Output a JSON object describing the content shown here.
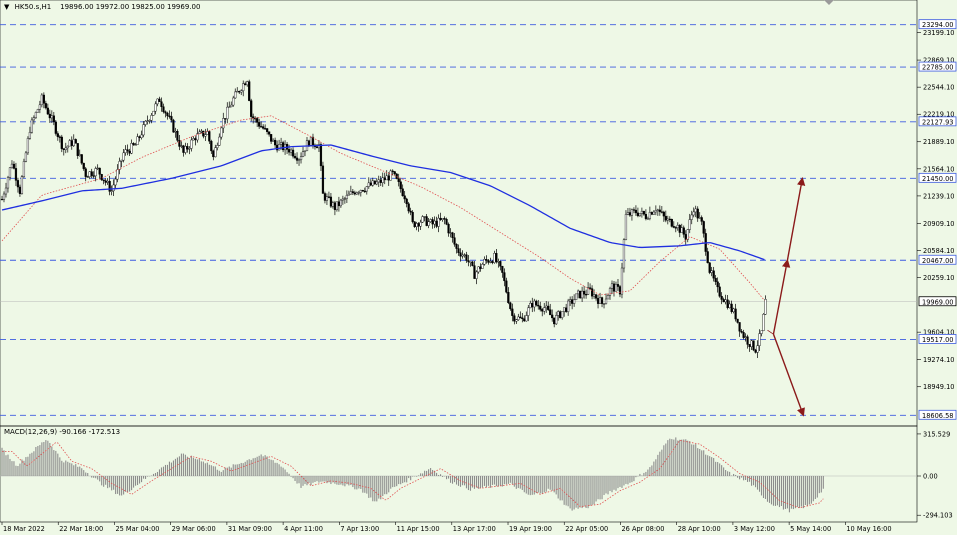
{
  "header": {
    "symbol_info": "HK50.s,H1",
    "ohlc": "19896.00 19972.00 19825.00 19969.00",
    "macd_info": "MACD(12,26,9) -90.166 -172.513"
  },
  "colors": {
    "background": "#eef8e6",
    "grid_level": "#3d5be0",
    "ma_slow": "#1f2fe0",
    "ma_fast": "#e05050",
    "candle": "#000000",
    "arrows": "#8b1a1a",
    "macd_bars": "#8c8c8c",
    "macd_signal": "#e05050"
  },
  "chart_data": {
    "type": "candlestick",
    "price_ticks": [
      "23199.10",
      "22869.10",
      "22544.10",
      "22219.10",
      "21889.10",
      "21564.10",
      "21239.10",
      "20909.10",
      "20584.10",
      "20259.10",
      "19604.10",
      "19274.10",
      "18949.10"
    ],
    "level_lines": [
      "23294.00",
      "22785.00",
      "22127.93",
      "21450.00",
      "20467.00",
      "19517.00",
      "18606.58"
    ],
    "current_price": "19969.00",
    "x_ticks": [
      "18 Mar 2022",
      "22 Mar 18:00",
      "25 Mar 04:00",
      "29 Mar 06:00",
      "31 Mar 09:00",
      "4 Apr 11:00",
      "7 Apr 13:00",
      "11 Apr 15:00",
      "13 Apr 17:00",
      "19 Apr 19:00",
      "22 Apr 05:00",
      "26 Apr 08:00",
      "28 Apr 10:00",
      "3 May 12:00",
      "5 May 14:00",
      "10 May 16:00"
    ],
    "macd_ticks": [
      "315.529",
      "0.00",
      "-294.103"
    ],
    "anchors": [
      {
        "t": 0,
        "p": 21200
      },
      {
        "t": 10,
        "p": 21650
      },
      {
        "t": 18,
        "p": 21300
      },
      {
        "t": 28,
        "p": 22050
      },
      {
        "t": 40,
        "p": 22400
      },
      {
        "t": 52,
        "p": 22100
      },
      {
        "t": 62,
        "p": 21800
      },
      {
        "t": 72,
        "p": 21900
      },
      {
        "t": 84,
        "p": 21500
      },
      {
        "t": 96,
        "p": 21550
      },
      {
        "t": 110,
        "p": 21300
      },
      {
        "t": 122,
        "p": 21750
      },
      {
        "t": 134,
        "p": 21850
      },
      {
        "t": 146,
        "p": 22150
      },
      {
        "t": 158,
        "p": 22400
      },
      {
        "t": 172,
        "p": 22050
      },
      {
        "t": 182,
        "p": 21750
      },
      {
        "t": 194,
        "p": 21950
      },
      {
        "t": 206,
        "p": 22000
      },
      {
        "t": 212,
        "p": 21700
      },
      {
        "t": 220,
        "p": 22100
      },
      {
        "t": 232,
        "p": 22400
      },
      {
        "t": 240,
        "p": 22550
      },
      {
        "t": 246,
        "p": 22650
      },
      {
        "t": 250,
        "p": 22200
      },
      {
        "t": 262,
        "p": 22050
      },
      {
        "t": 274,
        "p": 21850
      },
      {
        "t": 288,
        "p": 21800
      },
      {
        "t": 298,
        "p": 21700
      },
      {
        "t": 308,
        "p": 21900
      },
      {
        "t": 318,
        "p": 21850
      },
      {
        "t": 322,
        "p": 21250
      },
      {
        "t": 334,
        "p": 21100
      },
      {
        "t": 344,
        "p": 21200
      },
      {
        "t": 354,
        "p": 21300
      },
      {
        "t": 366,
        "p": 21350
      },
      {
        "t": 378,
        "p": 21400
      },
      {
        "t": 392,
        "p": 21500
      },
      {
        "t": 406,
        "p": 21200
      },
      {
        "t": 412,
        "p": 20900
      },
      {
        "t": 422,
        "p": 20950
      },
      {
        "t": 432,
        "p": 20900
      },
      {
        "t": 444,
        "p": 20950
      },
      {
        "t": 456,
        "p": 20600
      },
      {
        "t": 466,
        "p": 20500
      },
      {
        "t": 474,
        "p": 20300
      },
      {
        "t": 484,
        "p": 20450
      },
      {
        "t": 494,
        "p": 20500
      },
      {
        "t": 502,
        "p": 20300
      },
      {
        "t": 512,
        "p": 19800
      },
      {
        "t": 522,
        "p": 19750
      },
      {
        "t": 532,
        "p": 19950
      },
      {
        "t": 544,
        "p": 19900
      },
      {
        "t": 554,
        "p": 19750
      },
      {
        "t": 566,
        "p": 19900
      },
      {
        "t": 578,
        "p": 20050
      },
      {
        "t": 590,
        "p": 20100
      },
      {
        "t": 602,
        "p": 19950
      },
      {
        "t": 612,
        "p": 20150
      },
      {
        "t": 620,
        "p": 20100
      },
      {
        "t": 626,
        "p": 21000
      },
      {
        "t": 636,
        "p": 21050
      },
      {
        "t": 646,
        "p": 21000
      },
      {
        "t": 656,
        "p": 21100
      },
      {
        "t": 666,
        "p": 20950
      },
      {
        "t": 676,
        "p": 20900
      },
      {
        "t": 686,
        "p": 20750
      },
      {
        "t": 694,
        "p": 21100
      },
      {
        "t": 702,
        "p": 20900
      },
      {
        "t": 710,
        "p": 20350
      },
      {
        "t": 718,
        "p": 20100
      },
      {
        "t": 728,
        "p": 19950
      },
      {
        "t": 736,
        "p": 19800
      },
      {
        "t": 742,
        "p": 19600
      },
      {
        "t": 748,
        "p": 19500
      },
      {
        "t": 756,
        "p": 19400
      },
      {
        "t": 762,
        "p": 19600
      },
      {
        "t": 766,
        "p": 19969
      }
    ],
    "ma_slow": [
      {
        "t": 0,
        "p": 21070
      },
      {
        "t": 40,
        "p": 21180
      },
      {
        "t": 80,
        "p": 21300
      },
      {
        "t": 120,
        "p": 21330
      },
      {
        "t": 170,
        "p": 21450
      },
      {
        "t": 220,
        "p": 21600
      },
      {
        "t": 260,
        "p": 21780
      },
      {
        "t": 290,
        "p": 21830
      },
      {
        "t": 330,
        "p": 21850
      },
      {
        "t": 370,
        "p": 21720
      },
      {
        "t": 410,
        "p": 21600
      },
      {
        "t": 450,
        "p": 21520
      },
      {
        "t": 490,
        "p": 21360
      },
      {
        "t": 530,
        "p": 21120
      },
      {
        "t": 570,
        "p": 20850
      },
      {
        "t": 610,
        "p": 20680
      },
      {
        "t": 640,
        "p": 20620
      },
      {
        "t": 680,
        "p": 20640
      },
      {
        "t": 710,
        "p": 20680
      },
      {
        "t": 740,
        "p": 20580
      },
      {
        "t": 766,
        "p": 20470
      }
    ],
    "ma_fast": [
      {
        "t": 0,
        "p": 20700
      },
      {
        "t": 40,
        "p": 21250
      },
      {
        "t": 100,
        "p": 21450
      },
      {
        "t": 140,
        "p": 21700
      },
      {
        "t": 190,
        "p": 21950
      },
      {
        "t": 240,
        "p": 22150
      },
      {
        "t": 270,
        "p": 22200
      },
      {
        "t": 310,
        "p": 21950
      },
      {
        "t": 340,
        "p": 21750
      },
      {
        "t": 380,
        "p": 21550
      },
      {
        "t": 420,
        "p": 21350
      },
      {
        "t": 460,
        "p": 21100
      },
      {
        "t": 500,
        "p": 20800
      },
      {
        "t": 540,
        "p": 20500
      },
      {
        "t": 570,
        "p": 20250
      },
      {
        "t": 600,
        "p": 20050
      },
      {
        "t": 630,
        "p": 20100
      },
      {
        "t": 660,
        "p": 20450
      },
      {
        "t": 690,
        "p": 20750
      },
      {
        "t": 720,
        "p": 20600
      },
      {
        "t": 750,
        "p": 20200
      },
      {
        "t": 766,
        "p": 19970
      }
    ],
    "macd_anchors": [
      {
        "t": 0,
        "v": 200
      },
      {
        "t": 15,
        "v": 80
      },
      {
        "t": 30,
        "v": 180
      },
      {
        "t": 45,
        "v": 280
      },
      {
        "t": 60,
        "v": 120
      },
      {
        "t": 80,
        "v": 60
      },
      {
        "t": 100,
        "v": -60
      },
      {
        "t": 120,
        "v": -150
      },
      {
        "t": 140,
        "v": -40
      },
      {
        "t": 160,
        "v": 60
      },
      {
        "t": 180,
        "v": 160
      },
      {
        "t": 200,
        "v": 120
      },
      {
        "t": 220,
        "v": 40
      },
      {
        "t": 240,
        "v": 100
      },
      {
        "t": 260,
        "v": 160
      },
      {
        "t": 280,
        "v": 80
      },
      {
        "t": 300,
        "v": -80
      },
      {
        "t": 320,
        "v": -40
      },
      {
        "t": 340,
        "v": -60
      },
      {
        "t": 360,
        "v": -100
      },
      {
        "t": 375,
        "v": -200
      },
      {
        "t": 390,
        "v": -100
      },
      {
        "t": 410,
        "v": -20
      },
      {
        "t": 430,
        "v": 60
      },
      {
        "t": 450,
        "v": -40
      },
      {
        "t": 470,
        "v": -100
      },
      {
        "t": 490,
        "v": -80
      },
      {
        "t": 510,
        "v": -60
      },
      {
        "t": 530,
        "v": -150
      },
      {
        "t": 550,
        "v": -100
      },
      {
        "t": 570,
        "v": -250
      },
      {
        "t": 590,
        "v": -230
      },
      {
        "t": 610,
        "v": -120
      },
      {
        "t": 630,
        "v": -50
      },
      {
        "t": 650,
        "v": 60
      },
      {
        "t": 670,
        "v": 290
      },
      {
        "t": 690,
        "v": 260
      },
      {
        "t": 710,
        "v": 150
      },
      {
        "t": 730,
        "v": 20
      },
      {
        "t": 750,
        "v": -50
      },
      {
        "t": 770,
        "v": -200
      },
      {
        "t": 790,
        "v": -260
      },
      {
        "t": 810,
        "v": -220
      },
      {
        "t": 825,
        "v": -90
      }
    ],
    "projection": {
      "origin": {
        "t": 776,
        "p": 19580
      },
      "up1": {
        "t": 790,
        "p": 20467
      },
      "up2": {
        "t": 805,
        "p": 21450
      },
      "down": {
        "t": 806,
        "p": 18606.58
      }
    }
  }
}
